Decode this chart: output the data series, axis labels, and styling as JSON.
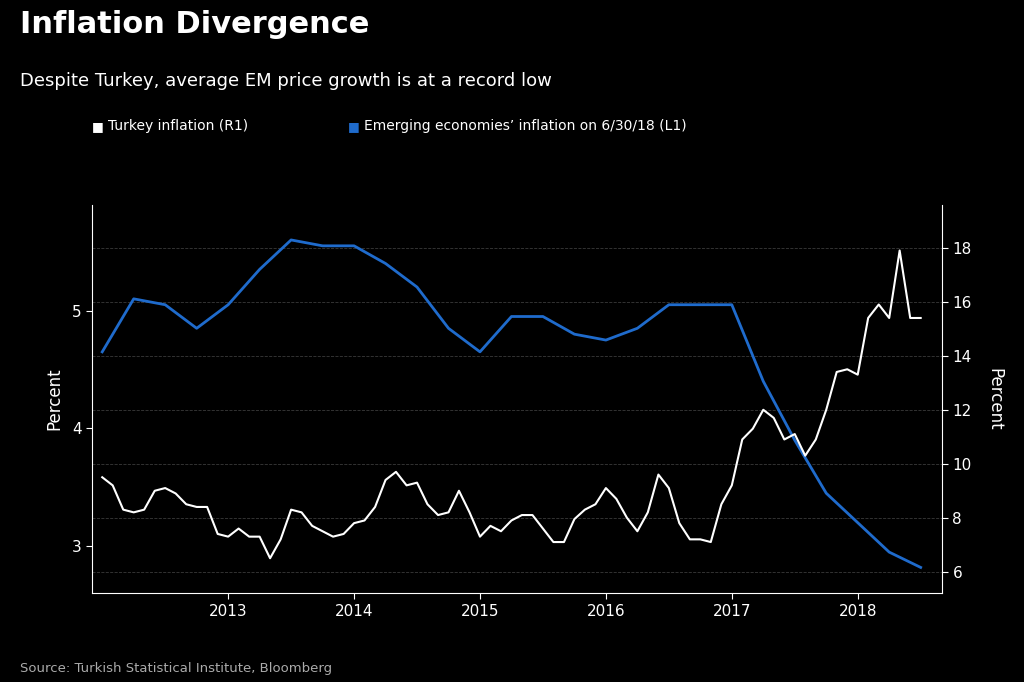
{
  "title": "Inflation Divergence",
  "subtitle": "Despite Turkey, average EM price growth is at a record low",
  "source": "Source: Turkish Statistical Institute, Bloomberg",
  "legend_turkey": "Turkey inflation (R1)",
  "legend_em": "Emerging economies’ inflation on 6/30/18 (L1)",
  "background_color": "#000000",
  "text_color": "#ffffff",
  "turkey_color": "#ffffff",
  "em_color": "#1f6bcc",
  "left_ylabel": "Percent",
  "right_ylabel": "Percent",
  "left_ylim": [
    2.6,
    5.9
  ],
  "left_yticks": [
    3,
    4,
    5
  ],
  "right_ylim": [
    5.2,
    19.6
  ],
  "right_yticks": [
    6,
    8,
    10,
    12,
    14,
    16,
    18
  ],
  "xlim": [
    2011.92,
    2018.67
  ],
  "xticks": [
    2013,
    2014,
    2015,
    2016,
    2017,
    2018
  ],
  "em_x": [
    2012.0,
    2012.25,
    2012.5,
    2012.75,
    2013.0,
    2013.25,
    2013.5,
    2013.75,
    2014.0,
    2014.25,
    2014.5,
    2014.75,
    2015.0,
    2015.25,
    2015.5,
    2015.75,
    2016.0,
    2016.25,
    2016.5,
    2016.75,
    2017.0,
    2017.25,
    2017.5,
    2017.75,
    2018.0,
    2018.25,
    2018.5
  ],
  "em_y": [
    4.65,
    5.1,
    5.05,
    4.85,
    5.05,
    5.35,
    5.6,
    5.55,
    5.55,
    5.4,
    5.2,
    4.85,
    4.65,
    4.95,
    4.95,
    4.8,
    4.75,
    4.85,
    5.05,
    5.05,
    5.05,
    4.4,
    3.9,
    3.45,
    3.2,
    2.95,
    2.82
  ],
  "turkey_x": [
    2012.0,
    2012.083,
    2012.167,
    2012.25,
    2012.333,
    2012.417,
    2012.5,
    2012.583,
    2012.667,
    2012.75,
    2012.833,
    2012.917,
    2013.0,
    2013.083,
    2013.167,
    2013.25,
    2013.333,
    2013.417,
    2013.5,
    2013.583,
    2013.667,
    2013.75,
    2013.833,
    2013.917,
    2014.0,
    2014.083,
    2014.167,
    2014.25,
    2014.333,
    2014.417,
    2014.5,
    2014.583,
    2014.667,
    2014.75,
    2014.833,
    2014.917,
    2015.0,
    2015.083,
    2015.167,
    2015.25,
    2015.333,
    2015.417,
    2015.5,
    2015.583,
    2015.667,
    2015.75,
    2015.833,
    2015.917,
    2016.0,
    2016.083,
    2016.167,
    2016.25,
    2016.333,
    2016.417,
    2016.5,
    2016.583,
    2016.667,
    2016.75,
    2016.833,
    2016.917,
    2017.0,
    2017.083,
    2017.167,
    2017.25,
    2017.333,
    2017.417,
    2017.5,
    2017.583,
    2017.667,
    2017.75,
    2017.833,
    2017.917,
    2018.0,
    2018.083,
    2018.167,
    2018.25,
    2018.333,
    2018.417,
    2018.5
  ],
  "turkey_y": [
    9.5,
    9.2,
    8.3,
    8.2,
    8.3,
    9.0,
    9.1,
    8.9,
    8.5,
    8.4,
    8.4,
    7.4,
    7.3,
    7.6,
    7.3,
    7.3,
    6.5,
    7.2,
    8.3,
    8.2,
    7.7,
    7.5,
    7.3,
    7.4,
    7.8,
    7.9,
    8.4,
    9.4,
    9.7,
    9.2,
    9.3,
    8.5,
    8.1,
    8.2,
    9.0,
    8.2,
    7.3,
    7.7,
    7.5,
    7.9,
    8.1,
    8.1,
    7.6,
    7.1,
    7.1,
    7.95,
    8.3,
    8.5,
    9.1,
    8.7,
    8.0,
    7.5,
    8.2,
    9.6,
    9.1,
    7.8,
    7.2,
    7.2,
    7.1,
    8.5,
    9.2,
    10.9,
    11.3,
    12.0,
    11.7,
    10.9,
    11.1,
    10.3,
    10.9,
    12.0,
    13.4,
    13.5,
    13.3,
    15.4,
    15.9,
    15.4,
    17.9,
    15.4,
    15.4
  ],
  "grid_color": "#3a3a3a",
  "grid_linestyle": "--",
  "grid_linewidth": 0.6
}
